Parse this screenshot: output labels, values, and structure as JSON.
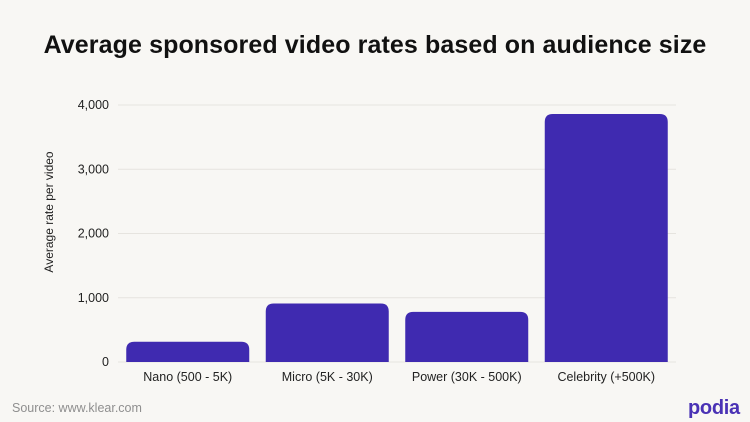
{
  "chart_data": {
    "type": "bar",
    "title": "Average sponsored video rates based on audience size",
    "xlabel": "",
    "ylabel": "Average rate per video",
    "categories": [
      "Nano (500 - 5K)",
      "Micro (5K - 30K)",
      "Power (30K - 500K)",
      "Celebrity (+500K)"
    ],
    "values": [
      315,
      910,
      780,
      3860
    ],
    "ylim": [
      0,
      4000
    ],
    "yticks": [
      0,
      1000,
      2000,
      3000,
      4000
    ],
    "ytick_labels": [
      "0",
      "1,000",
      "2,000",
      "3,000",
      "4,000"
    ],
    "grid": true,
    "legend": "none",
    "bar_color": "#3f2ab0"
  },
  "footer": {
    "source": "Source: www.klear.com",
    "brand": "podia"
  },
  "colors": {
    "background": "#f8f7f4",
    "brand": "#4a32b5",
    "gridline": "#e6e4df"
  }
}
